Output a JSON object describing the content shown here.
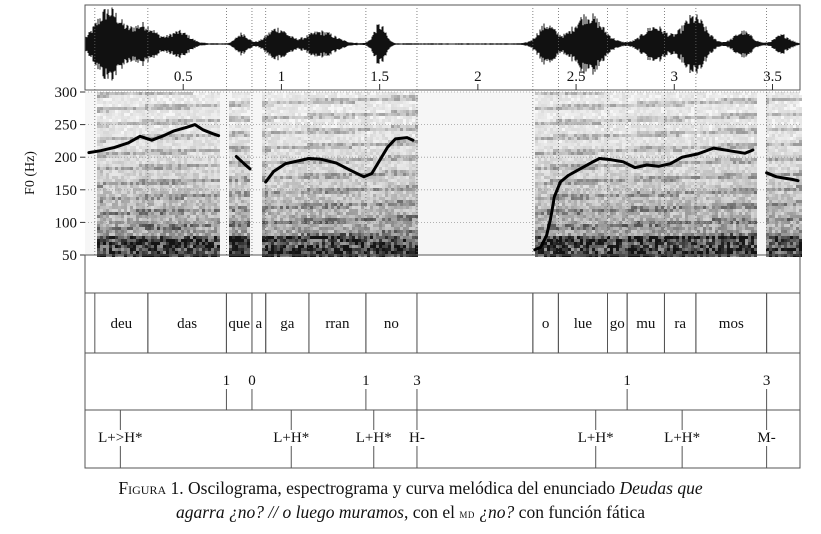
{
  "chart_data": {
    "type": "line",
    "ylabel": "F0 (Hz)",
    "xlim": [
      0.0,
      3.64
    ],
    "ylim": [
      50,
      300
    ],
    "x_ticks": [
      {
        "value": 0.5,
        "label": "0.5"
      },
      {
        "value": 1.0,
        "label": "1"
      },
      {
        "value": 1.5,
        "label": "1.5"
      },
      {
        "value": 2.0,
        "label": "2"
      },
      {
        "value": 2.5,
        "label": "2.5"
      },
      {
        "value": 3.0,
        "label": "3"
      },
      {
        "value": 3.5,
        "label": "3.5"
      }
    ],
    "y_ticks": [
      {
        "value": 50,
        "label": "50"
      },
      {
        "value": 100,
        "label": "100"
      },
      {
        "value": 150,
        "label": "150"
      },
      {
        "value": 200,
        "label": "200"
      },
      {
        "value": 250,
        "label": "250"
      },
      {
        "value": 300,
        "label": "300"
      }
    ],
    "grid": true,
    "series": [
      {
        "segments": [
          [
            [
              0.02,
              207
            ],
            [
              0.08,
              210
            ],
            [
              0.15,
              215
            ],
            [
              0.22,
              222
            ],
            [
              0.28,
              232
            ],
            [
              0.34,
              226
            ],
            [
              0.4,
              233
            ],
            [
              0.45,
              240
            ],
            [
              0.52,
              246
            ],
            [
              0.56,
              250
            ],
            [
              0.6,
              242
            ],
            [
              0.65,
              236
            ],
            [
              0.68,
              233
            ]
          ],
          [
            [
              0.77,
              201
            ],
            [
              0.81,
              190
            ],
            [
              0.84,
              182
            ]
          ],
          [
            [
              0.92,
              162
            ],
            [
              0.96,
              178
            ],
            [
              1.02,
              190
            ],
            [
              1.08,
              194
            ],
            [
              1.14,
              198
            ],
            [
              1.2,
              197
            ],
            [
              1.28,
              191
            ],
            [
              1.35,
              180
            ],
            [
              1.42,
              170
            ],
            [
              1.46,
              175
            ],
            [
              1.5,
              195
            ],
            [
              1.54,
              215
            ],
            [
              1.58,
              228
            ],
            [
              1.64,
              230
            ],
            [
              1.67,
              226
            ]
          ],
          [
            [
              2.29,
              58
            ],
            [
              2.32,
              62
            ],
            [
              2.35,
              80
            ],
            [
              2.37,
              105
            ],
            [
              2.39,
              140
            ],
            [
              2.42,
              162
            ],
            [
              2.46,
              172
            ],
            [
              2.52,
              182
            ],
            [
              2.58,
              192
            ],
            [
              2.62,
              198
            ],
            [
              2.68,
              196
            ],
            [
              2.74,
              193
            ],
            [
              2.8,
              184
            ],
            [
              2.86,
              188
            ],
            [
              2.92,
              186
            ],
            [
              2.98,
              190
            ],
            [
              3.04,
              200
            ],
            [
              3.12,
              205
            ],
            [
              3.2,
              214
            ],
            [
              3.28,
              210
            ],
            [
              3.36,
              206
            ],
            [
              3.4,
              211
            ]
          ],
          [
            [
              3.47,
              176
            ],
            [
              3.52,
              170
            ],
            [
              3.56,
              168
            ],
            [
              3.6,
              166
            ],
            [
              3.63,
              164
            ]
          ]
        ]
      }
    ]
  },
  "tiers": {
    "words": [
      {
        "start": 0.05,
        "end": 0.32,
        "label": "deu"
      },
      {
        "start": 0.32,
        "end": 0.72,
        "label": "das"
      },
      {
        "start": 0.72,
        "end": 0.85,
        "label": "que"
      },
      {
        "start": 0.85,
        "end": 0.92,
        "label": "a"
      },
      {
        "start": 0.92,
        "end": 1.14,
        "label": "ga"
      },
      {
        "start": 1.14,
        "end": 1.43,
        "label": "rran"
      },
      {
        "start": 1.43,
        "end": 1.69,
        "label": "no"
      },
      {
        "start": 1.69,
        "end": 2.28,
        "label": ""
      },
      {
        "start": 2.28,
        "end": 2.41,
        "label": "o"
      },
      {
        "start": 2.41,
        "end": 2.66,
        "label": "lue"
      },
      {
        "start": 2.66,
        "end": 2.76,
        "label": "go"
      },
      {
        "start": 2.76,
        "end": 2.95,
        "label": "mu"
      },
      {
        "start": 2.95,
        "end": 3.11,
        "label": "ra"
      },
      {
        "start": 3.11,
        "end": 3.47,
        "label": "mos"
      },
      {
        "start": 3.47,
        "end": 3.64,
        "label": ""
      }
    ],
    "breaks": [
      {
        "time": 0.72,
        "label": "1"
      },
      {
        "time": 0.85,
        "label": "0"
      },
      {
        "time": 1.43,
        "label": "1"
      },
      {
        "time": 1.69,
        "label": "3"
      },
      {
        "time": 2.76,
        "label": "1"
      },
      {
        "time": 3.47,
        "label": "3"
      }
    ],
    "tones": [
      {
        "time": 0.18,
        "label": "L+>H*"
      },
      {
        "time": 1.05,
        "label": "L+H*"
      },
      {
        "time": 1.47,
        "label": "L+H*"
      },
      {
        "time": 1.69,
        "label": "H-"
      },
      {
        "time": 2.6,
        "label": "L+H*"
      },
      {
        "time": 3.04,
        "label": "L+H*"
      },
      {
        "time": 3.47,
        "label": "M-"
      }
    ]
  },
  "caption": {
    "figura": "Figura",
    "number": " 1. ",
    "text1": "Oscilograma, espectrograma y curva melódica del enunciado ",
    "example1": "Deudas que",
    "example2": "agarra ¿no? // o luego muramos",
    "text2": ", con el ",
    "md": "md",
    "marker": " ¿no?",
    "text3": " con función fática"
  },
  "colors": {
    "line": "#000000",
    "frame": "#444444",
    "grid": "#9a9a9a"
  }
}
